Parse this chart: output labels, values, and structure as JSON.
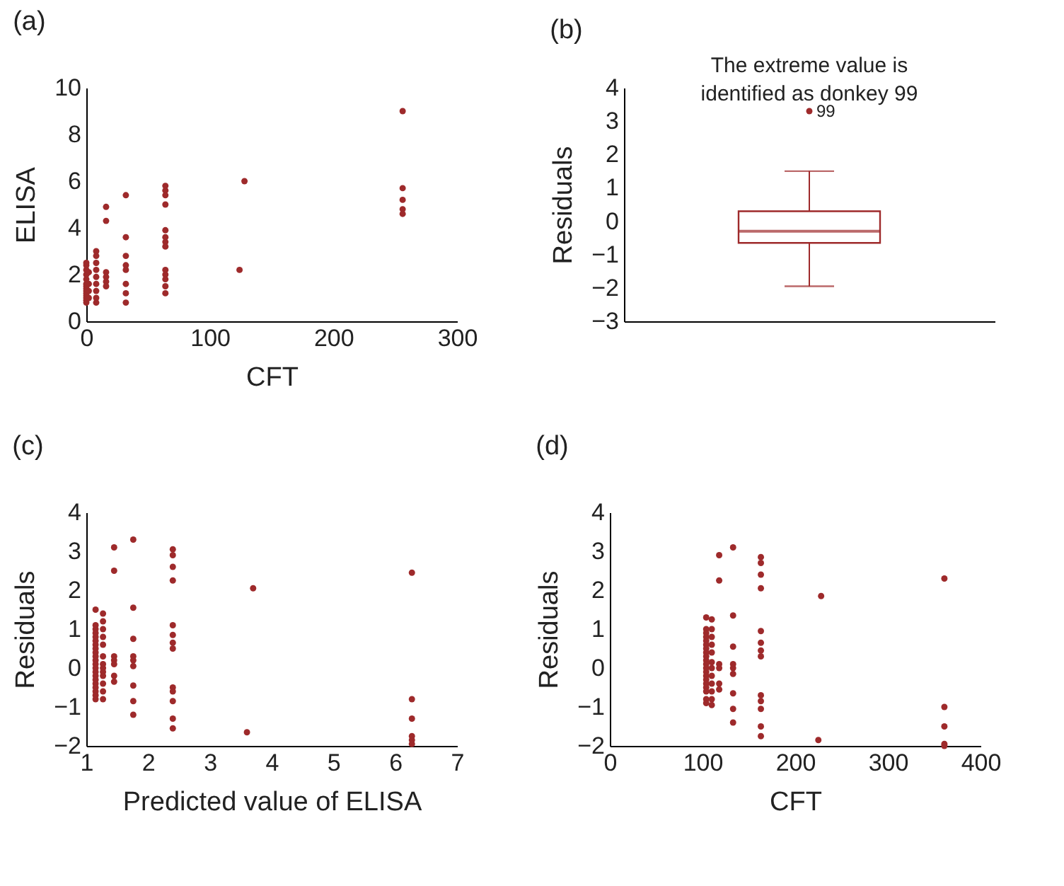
{
  "chart_data": [
    {
      "type": "scatter",
      "title": "(a)",
      "xlabel": "CFT",
      "ylabel": "ELISA",
      "color": "#9e2a2b",
      "marker": "circle",
      "xlim": [
        0,
        300
      ],
      "xticks": [
        0,
        100,
        200,
        300
      ],
      "ylim": [
        0,
        10
      ],
      "yticks": [
        0,
        2,
        4,
        6,
        8,
        10
      ],
      "x": [
        0,
        0,
        0,
        0,
        0,
        0,
        0,
        0,
        0,
        0,
        0,
        0,
        0,
        0,
        2,
        2,
        2,
        2,
        8,
        8,
        8,
        8,
        8,
        8,
        8,
        8,
        8,
        16,
        16,
        16,
        16,
        16,
        16,
        32,
        32,
        32,
        32,
        32,
        32,
        32,
        32,
        64,
        64,
        64,
        64,
        64,
        64,
        64,
        64,
        64,
        64,
        64,
        64,
        64,
        124,
        128,
        256,
        256,
        256,
        256,
        256
      ],
      "values": [
        0.8,
        0.9,
        1.0,
        1.1,
        1.2,
        1.3,
        1.4,
        1.5,
        1.6,
        1.8,
        2.0,
        2.2,
        2.4,
        2.5,
        1.0,
        1.3,
        1.6,
        2.1,
        0.8,
        1.0,
        1.3,
        1.6,
        1.9,
        2.2,
        2.5,
        2.8,
        3.0,
        4.9,
        4.3,
        2.1,
        1.9,
        1.7,
        1.5,
        5.4,
        3.6,
        2.8,
        2.4,
        2.2,
        1.6,
        1.2,
        0.8,
        5.8,
        5.6,
        5.4,
        5.0,
        3.9,
        3.6,
        3.4,
        3.2,
        2.2,
        2.0,
        1.8,
        1.5,
        1.2,
        2.2,
        6.0,
        9.0,
        5.7,
        5.2,
        4.8,
        4.6
      ]
    },
    {
      "type": "box",
      "title": "(b)",
      "ylabel": "Residuals",
      "color": "#9e2a2b",
      "categories": [
        null
      ],
      "ylim": [
        -3,
        4
      ],
      "yticks": [
        -3,
        -2,
        -1,
        0,
        1,
        2,
        3,
        4
      ],
      "boxes": [
        {
          "low": -1.95,
          "q1": -0.65,
          "median": -0.3,
          "q3": 0.3,
          "high": 1.5,
          "outliers": [
            3.3
          ]
        }
      ],
      "annotations": [
        "The extreme value is\nidentified as donkey 99",
        "99"
      ]
    },
    {
      "type": "scatter",
      "title": "(c)",
      "xlabel": "Predicted value of ELISA",
      "ylabel": "Residuals",
      "color": "#9e2a2b",
      "marker": "circle",
      "xlim": [
        1,
        7
      ],
      "xticks": [
        1,
        2,
        3,
        4,
        5,
        6,
        7
      ],
      "ylim": [
        -2,
        4
      ],
      "yticks": [
        -2,
        -1,
        0,
        1,
        2,
        3,
        4
      ],
      "x": [
        1.15,
        1.15,
        1.15,
        1.15,
        1.15,
        1.15,
        1.15,
        1.15,
        1.15,
        1.15,
        1.15,
        1.15,
        1.15,
        1.15,
        1.15,
        1.15,
        1.15,
        1.15,
        1.15,
        1.15,
        1.15,
        1.27,
        1.27,
        1.27,
        1.27,
        1.27,
        1.27,
        1.27,
        1.27,
        1.27,
        1.27,
        1.27,
        1.27,
        1.27,
        1.45,
        1.45,
        1.45,
        1.45,
        1.45,
        1.45,
        1.45,
        1.76,
        1.76,
        1.76,
        1.76,
        1.76,
        1.76,
        1.76,
        1.76,
        1.76,
        2.4,
        2.4,
        2.4,
        2.4,
        2.4,
        2.4,
        2.4,
        2.4,
        2.4,
        2.4,
        2.4,
        2.4,
        2.4,
        3.7,
        3.6,
        6.27,
        6.27,
        6.27,
        6.27,
        6.27,
        6.27
      ],
      "values": [
        1.5,
        1.1,
        1.0,
        0.9,
        0.8,
        0.7,
        0.6,
        0.5,
        0.4,
        0.3,
        0.2,
        0.1,
        0,
        -0.1,
        -0.2,
        -0.3,
        -0.4,
        -0.5,
        -0.6,
        -0.7,
        -0.8,
        1.4,
        1.2,
        1.0,
        0.8,
        0.6,
        0.3,
        0.1,
        0,
        -0.1,
        -0.2,
        -0.4,
        -0.6,
        -0.8,
        3.1,
        2.5,
        0.3,
        0.2,
        0.1,
        -0.2,
        -0.35,
        3.3,
        1.55,
        0.75,
        0.3,
        0.2,
        0.05,
        -0.45,
        -0.85,
        -1.2,
        3.05,
        2.9,
        2.6,
        2.25,
        1.1,
        0.85,
        0.65,
        0.5,
        -0.5,
        -0.6,
        -0.85,
        -1.3,
        -1.55,
        2.05,
        -1.65,
        2.45,
        -0.8,
        -1.3,
        -1.75,
        -1.85,
        -1.95
      ]
    },
    {
      "type": "scatter",
      "title": "(d)",
      "xlabel": "CFT",
      "ylabel": "Residuals",
      "color": "#9e2a2b",
      "marker": "circle",
      "xlim": [
        0,
        400
      ],
      "xticks": [
        0,
        100,
        200,
        300,
        400
      ],
      "ylim": [
        -2,
        4
      ],
      "yticks": [
        -2,
        -1,
        0,
        1,
        2,
        3,
        4
      ],
      "x": [
        104,
        104,
        104,
        104,
        104,
        104,
        104,
        104,
        104,
        104,
        104,
        104,
        104,
        104,
        104,
        104,
        104,
        104,
        104,
        104,
        110,
        110,
        110,
        110,
        110,
        110,
        110,
        110,
        110,
        110,
        110,
        110,
        118,
        118,
        118,
        118,
        118,
        118,
        133,
        133,
        133,
        133,
        133,
        133,
        133,
        133,
        133,
        163,
        163,
        163,
        163,
        163,
        163,
        163,
        163,
        163,
        163,
        163,
        163,
        163,
        228,
        225,
        361,
        361,
        361,
        361,
        361
      ],
      "values": [
        1.3,
        1.0,
        0.9,
        0.8,
        0.7,
        0.6,
        0.5,
        0.4,
        0.3,
        0.2,
        0.1,
        0,
        -0.1,
        -0.2,
        -0.3,
        -0.4,
        -0.5,
        -0.6,
        -0.8,
        -0.9,
        1.25,
        1.0,
        0.8,
        0.6,
        0.4,
        0.15,
        0,
        -0.2,
        -0.4,
        -0.6,
        -0.8,
        -0.95,
        2.9,
        2.25,
        0.1,
        0.0,
        -0.4,
        -0.55,
        3.1,
        1.35,
        0.55,
        0.1,
        0,
        -0.15,
        -0.65,
        -1.05,
        -1.4,
        2.85,
        2.7,
        2.4,
        2.05,
        0.95,
        0.65,
        0.45,
        0.3,
        -0.7,
        -0.85,
        -1.05,
        -1.5,
        -1.75,
        1.85,
        -1.85,
        2.3,
        -1.0,
        -1.5,
        -1.95,
        -2.0
      ]
    }
  ]
}
